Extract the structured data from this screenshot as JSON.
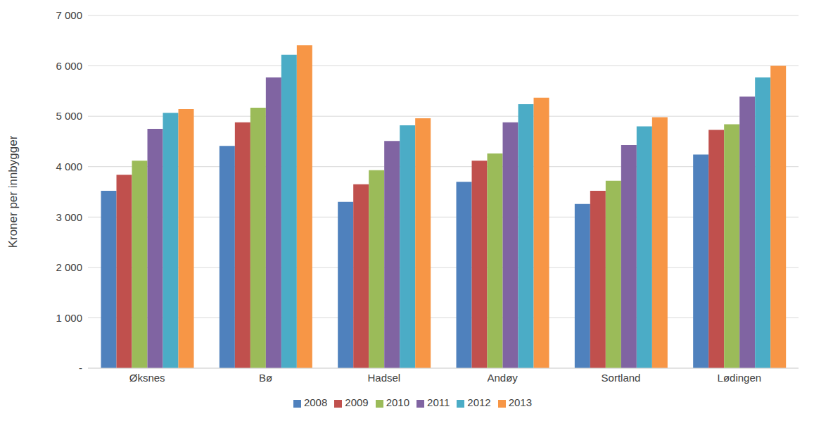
{
  "chart_data": {
    "type": "bar",
    "y_label": "Kroner per innbygger",
    "categories": [
      "Øksnes",
      "Bø",
      "Hadsel",
      "Andøy",
      "Sortland",
      "Lødingen"
    ],
    "series": [
      {
        "name": "2008",
        "color": "#4f81bd",
        "values": [
          3520,
          4410,
          3300,
          3700,
          3260,
          4240
        ]
      },
      {
        "name": "2009",
        "color": "#c0504d",
        "values": [
          3840,
          4880,
          3650,
          4120,
          3520,
          4730
        ]
      },
      {
        "name": "2010",
        "color": "#9bbb59",
        "values": [
          4120,
          5170,
          3930,
          4260,
          3720,
          4840
        ]
      },
      {
        "name": "2011",
        "color": "#8064a2",
        "values": [
          4750,
          5770,
          4510,
          4880,
          4430,
          5390
        ]
      },
      {
        "name": "2012",
        "color": "#4bacc6",
        "values": [
          5070,
          6220,
          4820,
          5240,
          4800,
          5770
        ]
      },
      {
        "name": "2013",
        "color": "#f79646",
        "values": [
          5140,
          6410,
          4960,
          5370,
          4980,
          6000
        ]
      }
    ],
    "ylim": [
      0,
      7000
    ],
    "yticks": [
      {
        "value": 0,
        "label": "-"
      },
      {
        "value": 1000,
        "label": "1 000"
      },
      {
        "value": 2000,
        "label": "2 000"
      },
      {
        "value": 3000,
        "label": "3 000"
      },
      {
        "value": 4000,
        "label": "4 000"
      },
      {
        "value": 5000,
        "label": "5 000"
      },
      {
        "value": 6000,
        "label": "6 000"
      },
      {
        "value": 7000,
        "label": "7 000"
      }
    ],
    "grid": true,
    "legend": "bottom"
  }
}
